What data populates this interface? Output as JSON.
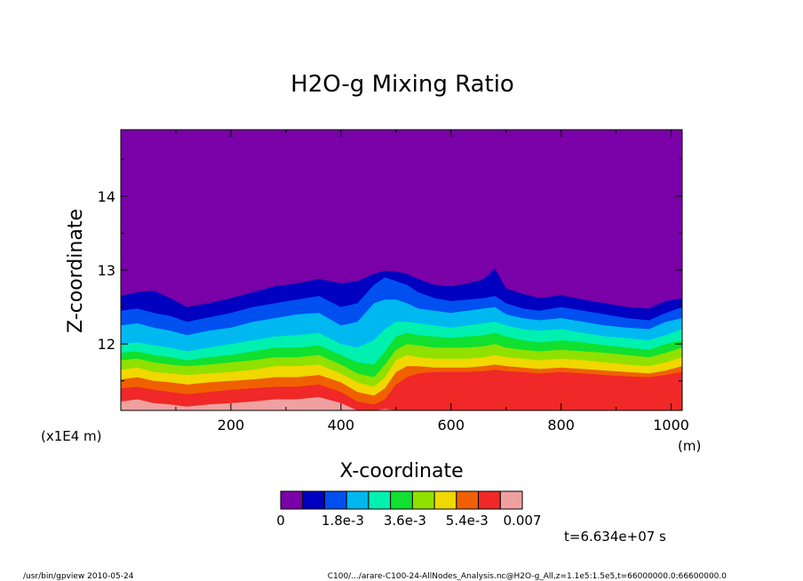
{
  "chart_data": {
    "type": "heatmap",
    "title": "H2O-g Mixing Ratio",
    "xlabel": "X-coordinate",
    "ylabel": "Z-coordinate",
    "x_unit": "(m)",
    "y_unit": "(x1E4 m)",
    "xlim": [
      0,
      1020
    ],
    "ylim": [
      11.1,
      14.9
    ],
    "x_ticks": [
      200,
      400,
      600,
      800,
      1000
    ],
    "x_tick_labels": [
      "200",
      "400",
      "600",
      "800",
      "1000"
    ],
    "y_ticks": [
      12,
      13,
      14
    ],
    "y_tick_labels": [
      "12",
      "13",
      "14"
    ],
    "colorbar": {
      "min": 0,
      "max": 0.007,
      "colors": [
        "#7a00a8",
        "#0000c0",
        "#0050f0",
        "#00b8f0",
        "#00f0b0",
        "#10e030",
        "#90e000",
        "#f0d800",
        "#f06000",
        "#f02828",
        "#f0a0a0"
      ],
      "labels": [
        "0",
        "1.8e-3",
        "3.6e-3",
        "5.4e-3",
        "0.007"
      ],
      "label_values": [
        0,
        0.0018,
        0.0036,
        0.0054,
        0.007
      ]
    },
    "boundary_x": [
      0,
      30,
      60,
      90,
      120,
      160,
      200,
      240,
      280,
      320,
      360,
      400,
      430,
      460,
      480,
      500,
      520,
      540,
      570,
      600,
      630,
      660,
      680,
      700,
      730,
      760,
      800,
      840,
      880,
      920,
      960,
      990,
      1020
    ],
    "level_boundaries": [
      [
        12.65,
        12.7,
        12.72,
        12.62,
        12.5,
        12.55,
        12.62,
        12.7,
        12.78,
        12.82,
        12.88,
        12.82,
        12.85,
        12.95,
        12.99,
        12.98,
        12.95,
        12.88,
        12.8,
        12.78,
        12.82,
        12.88,
        13.02,
        12.75,
        12.68,
        12.62,
        12.66,
        12.6,
        12.55,
        12.5,
        12.48,
        12.58,
        12.62
      ],
      [
        12.45,
        12.48,
        12.42,
        12.38,
        12.3,
        12.36,
        12.42,
        12.5,
        12.55,
        12.6,
        12.65,
        12.5,
        12.55,
        12.8,
        12.9,
        12.85,
        12.8,
        12.7,
        12.62,
        12.58,
        12.6,
        12.62,
        12.65,
        12.55,
        12.48,
        12.45,
        12.5,
        12.45,
        12.4,
        12.35,
        12.32,
        12.42,
        12.5
      ],
      [
        12.25,
        12.28,
        12.22,
        12.18,
        12.12,
        12.18,
        12.22,
        12.3,
        12.35,
        12.4,
        12.42,
        12.25,
        12.3,
        12.55,
        12.6,
        12.6,
        12.55,
        12.48,
        12.45,
        12.42,
        12.45,
        12.48,
        12.5,
        12.4,
        12.35,
        12.32,
        12.35,
        12.3,
        12.25,
        12.22,
        12.2,
        12.3,
        12.35
      ],
      [
        12.0,
        12.02,
        11.98,
        11.95,
        11.9,
        11.95,
        12.0,
        12.05,
        12.1,
        12.12,
        12.15,
        12.0,
        11.95,
        12.05,
        12.2,
        12.3,
        12.3,
        12.28,
        12.25,
        12.22,
        12.25,
        12.28,
        12.3,
        12.25,
        12.2,
        12.18,
        12.2,
        12.15,
        12.1,
        12.08,
        12.05,
        12.12,
        12.2
      ],
      [
        11.88,
        11.9,
        11.85,
        11.82,
        11.78,
        11.82,
        11.85,
        11.9,
        11.95,
        11.95,
        11.98,
        11.85,
        11.75,
        11.72,
        11.9,
        12.1,
        12.15,
        12.12,
        12.1,
        12.08,
        12.1,
        12.12,
        12.15,
        12.1,
        12.05,
        12.02,
        12.05,
        12.02,
        11.98,
        11.95,
        11.92,
        12.0,
        12.05
      ],
      [
        11.78,
        11.8,
        11.75,
        11.72,
        11.7,
        11.72,
        11.75,
        11.78,
        11.82,
        11.82,
        11.85,
        11.72,
        11.6,
        11.55,
        11.72,
        11.92,
        12.0,
        11.98,
        11.95,
        11.95,
        11.95,
        11.97,
        12.0,
        11.95,
        11.92,
        11.9,
        11.92,
        11.9,
        11.88,
        11.85,
        11.82,
        11.88,
        11.95
      ],
      [
        11.65,
        11.68,
        11.62,
        11.6,
        11.58,
        11.6,
        11.62,
        11.65,
        11.7,
        11.7,
        11.72,
        11.6,
        11.48,
        11.42,
        11.55,
        11.78,
        11.85,
        11.82,
        11.8,
        11.8,
        11.8,
        11.82,
        11.85,
        11.82,
        11.8,
        11.78,
        11.8,
        11.78,
        11.75,
        11.72,
        11.7,
        11.75,
        11.82
      ],
      [
        11.52,
        11.55,
        11.5,
        11.48,
        11.45,
        11.48,
        11.5,
        11.52,
        11.55,
        11.55,
        11.58,
        11.48,
        11.35,
        11.3,
        11.4,
        11.62,
        11.7,
        11.7,
        11.68,
        11.68,
        11.68,
        11.7,
        11.72,
        11.7,
        11.68,
        11.66,
        11.68,
        11.66,
        11.64,
        11.62,
        11.6,
        11.64,
        11.7
      ],
      [
        11.4,
        11.42,
        11.38,
        11.35,
        11.32,
        11.35,
        11.38,
        11.4,
        11.42,
        11.42,
        11.45,
        11.35,
        11.22,
        11.18,
        11.25,
        11.45,
        11.55,
        11.6,
        11.62,
        11.62,
        11.62,
        11.63,
        11.65,
        11.63,
        11.62,
        11.6,
        11.62,
        11.6,
        11.58,
        11.56,
        11.55,
        11.58,
        11.62
      ],
      [
        11.22,
        11.25,
        11.2,
        11.18,
        11.15,
        11.18,
        11.2,
        11.22,
        11.25,
        11.25,
        11.28,
        11.2,
        11.1,
        11.1,
        11.12,
        11.1,
        11.1,
        11.1,
        11.1,
        11.1,
        11.1,
        11.1,
        11.1,
        11.1,
        11.1,
        11.1,
        11.1,
        11.1,
        11.1,
        11.1,
        11.1,
        11.1,
        11.1
      ]
    ]
  },
  "time_label": "t=6.634e+07 s",
  "footer": {
    "left": "/usr/bin/gpview   2010-05-24",
    "right": "C100/.../arare-C100-24-AllNodes_Analysis.nc@H2O-g_All,z=1.1e5:1.5e5,t=66000000.0:66600000.0"
  }
}
